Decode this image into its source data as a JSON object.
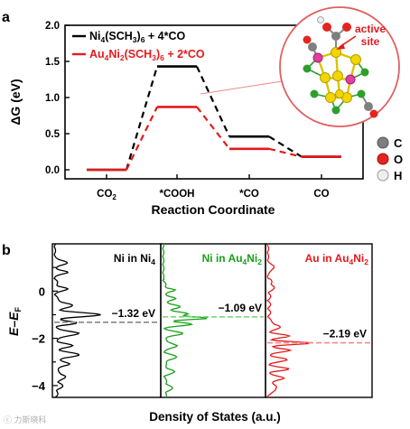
{
  "chart_data": [
    {
      "panel": "a",
      "type": "line",
      "title": "",
      "xlabel": "Reaction Coordinate",
      "ylabel": "ΔG (eV)",
      "ylim": [
        0.0,
        2.0
      ],
      "yticks": [
        "0.0",
        "0.5",
        "1.0",
        "1.5",
        "2.0"
      ],
      "categories": [
        "CO₂",
        "*COOH",
        "*CO",
        "CO"
      ],
      "grid": false,
      "legend_position": "top-left",
      "series": [
        {
          "name": "Ni₄(SCH₃)₆ + 4*CO",
          "color": "#000000",
          "values": [
            0.0,
            1.43,
            0.46,
            0.18
          ]
        },
        {
          "name": "Au₄Ni₂(SCH₃)₆ + 2*CO",
          "color": "#e41a1c",
          "values": [
            0.0,
            0.87,
            0.29,
            0.18
          ]
        }
      ],
      "inset": {
        "annotation": "active site",
        "atom_legend": [
          {
            "label": "C",
            "color": "#7f7f7f"
          },
          {
            "label": "O",
            "color": "#e3251f"
          },
          {
            "label": "H",
            "color": "#e8e8e8"
          }
        ]
      }
    },
    {
      "panel": "b",
      "type": "line",
      "xlabel": "Density of States (a.u.)",
      "ylabel": "E–E_F",
      "ylim": [
        -4.5,
        2.0
      ],
      "yticks": [
        "−4",
        "−2",
        "0"
      ],
      "grid": false,
      "series": [
        {
          "name": "Ni in Ni₄",
          "color": "#000000",
          "center": "−1.32 eV",
          "center_value": -1.32
        },
        {
          "name": "Ni in Au₄Ni₂",
          "color": "#18a018",
          "center": "−1.09 eV",
          "center_value": -1.09
        },
        {
          "name": "Au in Au₄Ni₂",
          "color": "#e41a1c",
          "center": "−2.19 eV",
          "center_value": -2.19
        }
      ]
    }
  ],
  "labels": {
    "panel_a": "a",
    "panel_b": "b",
    "legend_black_main": "Ni",
    "legend_black_sub1": "4",
    "legend_black_mid": "(SCH",
    "legend_black_sub2": "3",
    "legend_black_mid2": ")",
    "legend_black_sub3": "6",
    "legend_black_end": " + 4*CO",
    "legend_red_main": "Au",
    "legend_red_sub1": "4",
    "legend_red_mid": "Ni",
    "legend_red_sub2": "2",
    "legend_red_mid2": "(SCH",
    "legend_red_sub3": "3",
    "legend_red_mid3": ")",
    "legend_red_sub4": "6",
    "legend_red_end": " + 2*CO",
    "cat_co2_main": "CO",
    "cat_co2_sub": "2",
    "cat_cooh": "*COOH",
    "cat_co_ads": "*CO",
    "cat_co": "CO",
    "active_line1": "active",
    "active_line2": "site",
    "atom_c": "C",
    "atom_o": "O",
    "atom_h": "H",
    "b_title1_main": "Ni in Ni",
    "b_title1_sub": "4",
    "b_title2_main": "Ni in Au",
    "b_title2_sub1": "4",
    "b_title2_mid": "Ni",
    "b_title2_sub2": "2",
    "b_title3_main": "Au in Au",
    "b_title3_sub1": "4",
    "b_title3_mid": "Ni",
    "b_title3_sub2": "2",
    "b_ylabel_main": "E",
    "b_ylabel_dash": "–",
    "b_ylabel_e": "E",
    "b_ylabel_sub": "F",
    "watermark": "ⓒ 力斯晓科"
  }
}
